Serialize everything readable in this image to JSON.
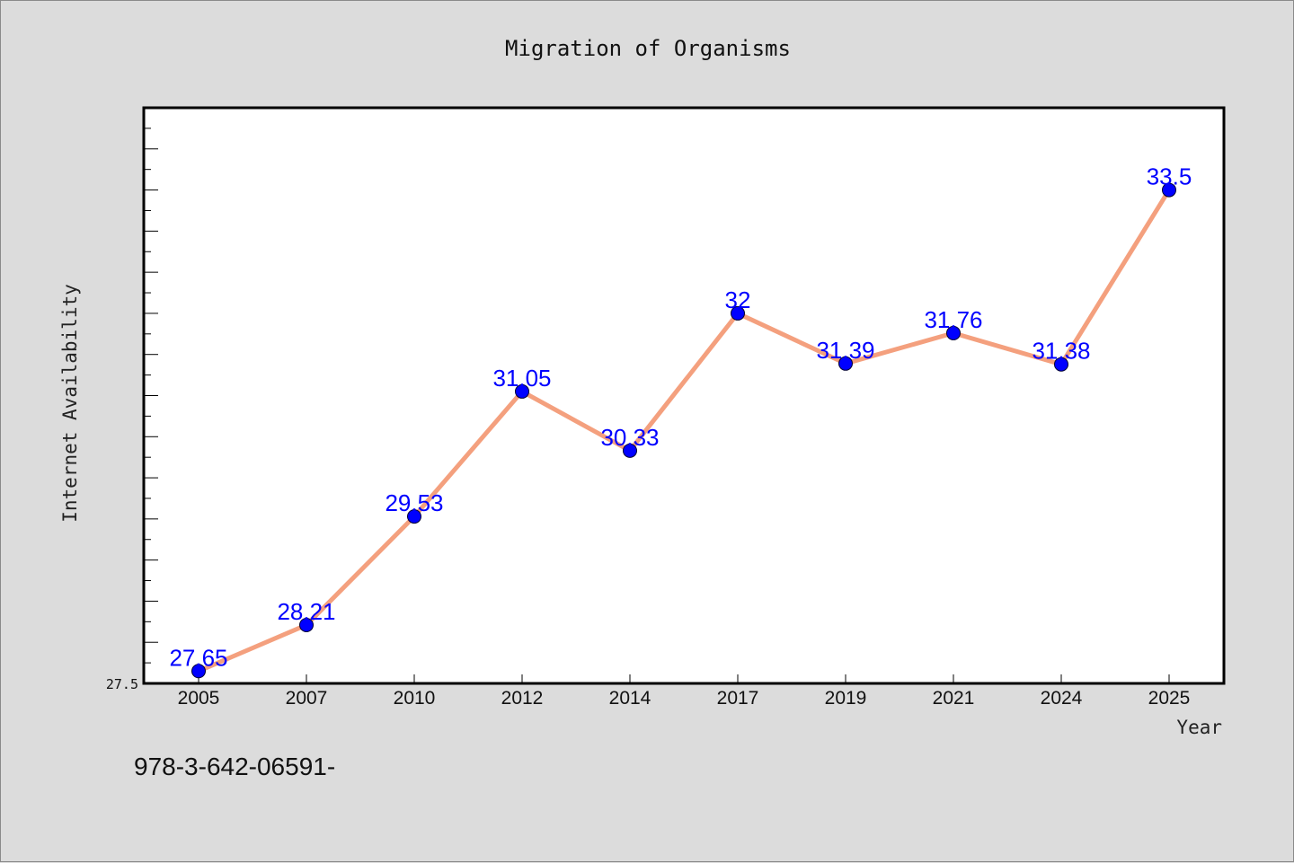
{
  "chart_data": {
    "type": "line",
    "title": "Migration of Organisms",
    "xlabel": "Year",
    "ylabel": "Internet Availability",
    "categories": [
      "2005",
      "2007",
      "2010",
      "2012",
      "2014",
      "2017",
      "2019",
      "2021",
      "2024",
      "2025"
    ],
    "series": [
      {
        "values": [
          27.65,
          28.21,
          29.53,
          31.05,
          30.33,
          32,
          31.39,
          31.76,
          31.38,
          33.5
        ]
      }
    ],
    "data_labels": [
      "27.65",
      "28.21",
      "29.53",
      "31.05",
      "30.33",
      "32",
      "31.39",
      "31.76",
      "31.38",
      "33.5"
    ],
    "y_tick_labels": [
      "27.5"
    ],
    "ylim": [
      27.5,
      34.5
    ],
    "grid": false,
    "legend": "none",
    "colors": {
      "line": "#f4a07e",
      "marker": "#0000ff",
      "data_label": "#0000ff",
      "plot_background": "#ffffff",
      "page_background": "#dcdcdc"
    }
  },
  "footer": {
    "text": "978-3-642-06591-"
  }
}
